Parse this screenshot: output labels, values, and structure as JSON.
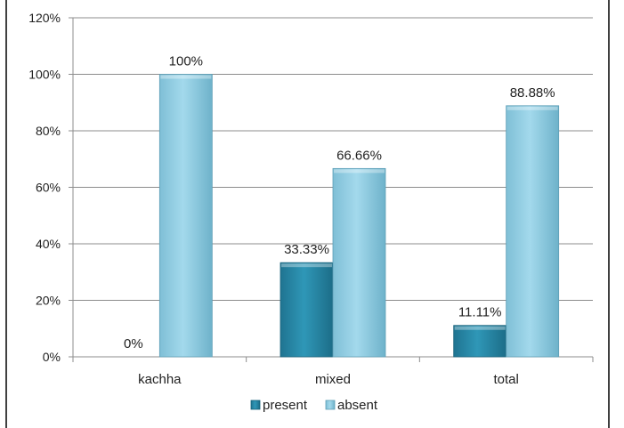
{
  "chart_data": {
    "type": "bar",
    "categories": [
      "kachha",
      "mixed",
      "total"
    ],
    "series": [
      {
        "name": "present",
        "values": [
          0,
          33.33,
          11.11
        ],
        "labels": [
          "0%",
          "33.33%",
          "11.11%"
        ],
        "color": "#2a8ba8"
      },
      {
        "name": "absent",
        "values": [
          100,
          66.66,
          88.88
        ],
        "labels": [
          "100%",
          "66.66%",
          "88.88%"
        ],
        "color": "#8ecde3"
      }
    ],
    "ylim": [
      0,
      120
    ],
    "yticks": [
      0,
      20,
      40,
      60,
      80,
      100,
      120
    ],
    "ytick_labels": [
      "0%",
      "20%",
      "40%",
      "60%",
      "80%",
      "100%",
      "120%"
    ],
    "grid": true,
    "legend_position": "bottom",
    "title": "",
    "xlabel": "",
    "ylabel": ""
  }
}
